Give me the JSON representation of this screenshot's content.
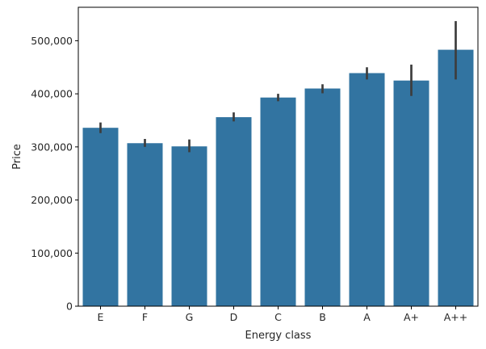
{
  "chart_data": {
    "type": "bar",
    "title": "",
    "xlabel": "Energy class",
    "ylabel": "Price",
    "categories": [
      "E",
      "F",
      "G",
      "D",
      "C",
      "B",
      "A",
      "A+",
      "A++"
    ],
    "values": [
      336000,
      307000,
      301000,
      356000,
      393000,
      410000,
      439000,
      425000,
      483000
    ],
    "error_low": [
      326000,
      300000,
      290000,
      348000,
      386000,
      401000,
      427000,
      396000,
      427000
    ],
    "error_high": [
      346000,
      315000,
      314000,
      365000,
      400000,
      418000,
      450000,
      455000,
      537000
    ],
    "ylim": [
      0,
      563000
    ],
    "yticks": [
      0,
      100000,
      200000,
      300000,
      400000,
      500000
    ],
    "ytick_labels": [
      "0",
      "100,000",
      "200,000",
      "300,000",
      "400,000",
      "500,000"
    ],
    "bar_color": "#3274a1",
    "error_color": "#3d3d3d",
    "grid": false
  }
}
